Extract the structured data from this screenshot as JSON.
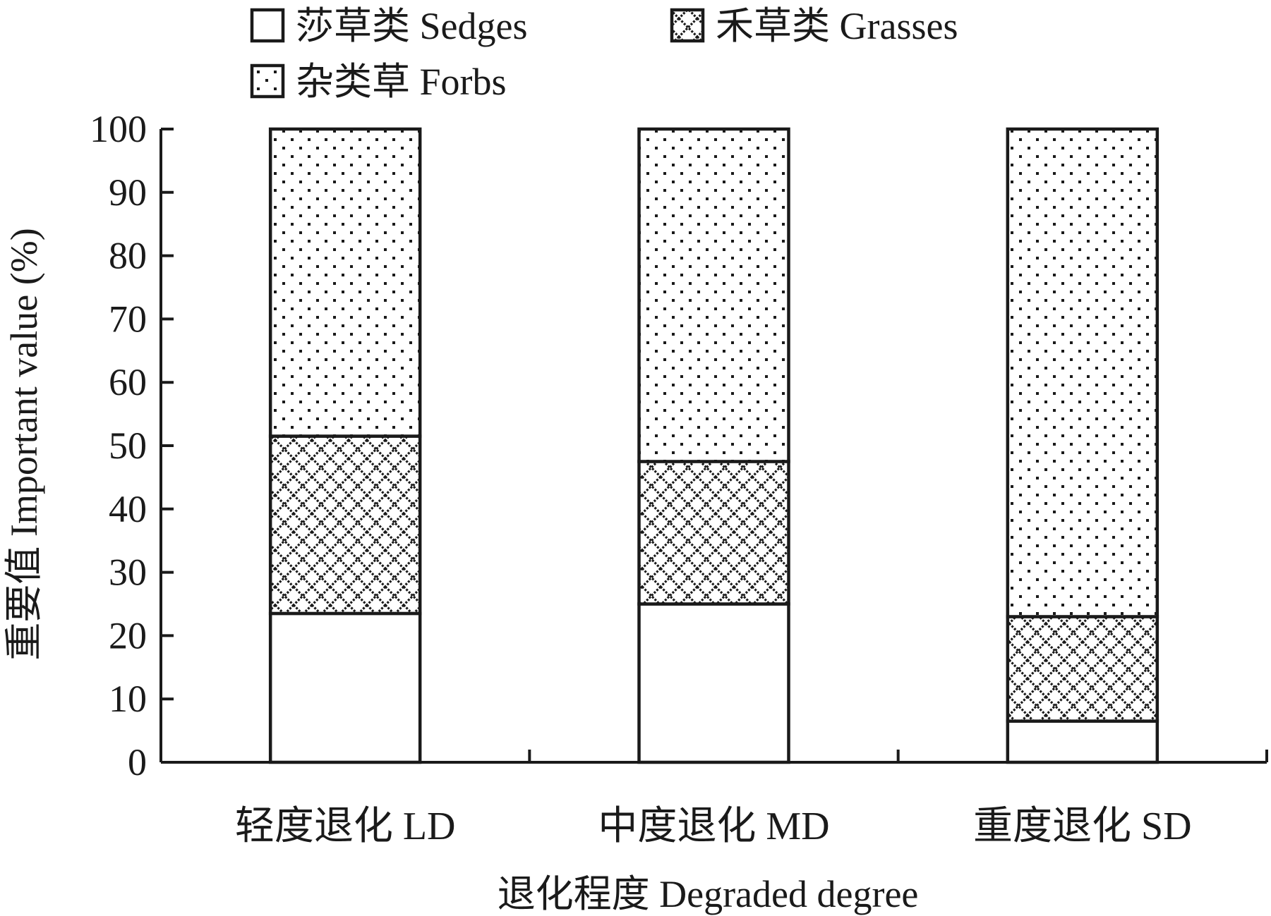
{
  "chart_data": {
    "type": "bar",
    "stacked": true,
    "categories": [
      "轻度退化 LD",
      "中度退化 MD",
      "重度退化 SD"
    ],
    "series": [
      {
        "name": "莎草类 Sedges",
        "pattern": "blank",
        "values": [
          23.5,
          25,
          6.5
        ]
      },
      {
        "name": "禾草类 Grasses",
        "pattern": "crosshatch",
        "values": [
          28,
          22.5,
          16.5
        ]
      },
      {
        "name": "杂类草 Forbs",
        "pattern": "dots",
        "values": [
          48.5,
          52.5,
          77
        ]
      }
    ],
    "xlabel": "退化程度 Degraded degree",
    "ylabel": "重要值 Important value (%)",
    "ylim": [
      0,
      100
    ],
    "yticks": [
      0,
      10,
      20,
      30,
      40,
      50,
      60,
      70,
      80,
      90,
      100
    ],
    "grid": false,
    "legend_position": "top-left",
    "colors": {
      "ink": "#1a1a1a",
      "background": "#ffffff"
    }
  }
}
